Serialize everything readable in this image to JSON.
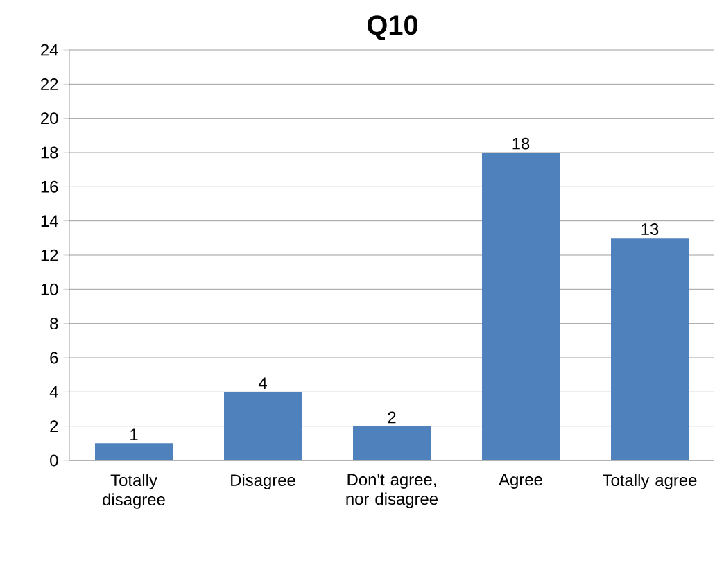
{
  "chart_data": {
    "type": "bar",
    "title": "Q10",
    "categories": [
      "Totally disagree",
      "Disagree",
      "Don't agree, nor disagree",
      "Agree",
      "Totally agree"
    ],
    "values": [
      1,
      4,
      2,
      18,
      13
    ],
    "color": "#4f81bd",
    "ylim": [
      0,
      24
    ],
    "yticks": [
      0,
      2,
      4,
      6,
      8,
      10,
      12,
      14,
      16,
      18,
      20,
      22,
      24
    ],
    "grid": "y",
    "data_labels": true
  }
}
